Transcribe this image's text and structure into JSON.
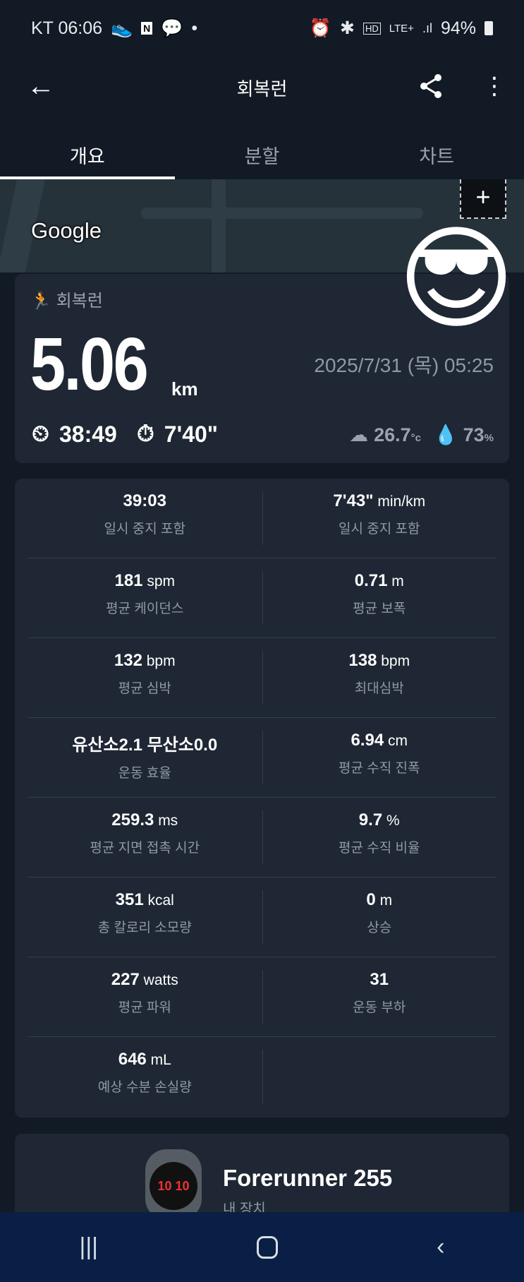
{
  "status_bar": {
    "carrier_time": "KT 06:06",
    "battery": "94%",
    "icons": [
      "shoe-icon",
      "naver-icon",
      "kakaotalk-icon",
      "dot-icon",
      "alarm-icon",
      "bluetooth-icon",
      "hd-icon",
      "lte-icon",
      "signal-icon",
      "battery-icon"
    ]
  },
  "app_bar": {
    "title": "회복런"
  },
  "tabs": [
    {
      "label": "개요",
      "active": true
    },
    {
      "label": "분할"
    },
    {
      "label": "차트"
    }
  ],
  "map": {
    "logo": "Google"
  },
  "summary": {
    "type": "회복런",
    "distance": "5.06",
    "unit": "km",
    "datetime": "2025/7/31 (목) 05:25",
    "time": "38:49",
    "pace": "7'40\"",
    "temp": "26.7",
    "temp_unit": "°c",
    "humidity": "73",
    "humidity_unit": "%"
  },
  "stats": [
    [
      {
        "v": "39:03",
        "u": "",
        "l": "일시 중지 포함"
      },
      {
        "v": "7'43\"",
        "u": " min/km",
        "l": "일시 중지 포함"
      }
    ],
    [
      {
        "v": "181",
        "u": " spm",
        "l": "평균 케이던스"
      },
      {
        "v": "0.71",
        "u": " m",
        "l": "평균 보폭"
      }
    ],
    [
      {
        "v": "132",
        "u": " bpm",
        "l": "평균 심박"
      },
      {
        "v": "138",
        "u": " bpm",
        "l": "최대심박"
      }
    ],
    [
      {
        "v": "유산소2.1 무산소0.0",
        "u": "",
        "l": "운동 효율"
      },
      {
        "v": "6.94",
        "u": " cm",
        "l": "평균 수직 진폭"
      }
    ],
    [
      {
        "v": "259.3",
        "u": " ms",
        "l": "평균 지면 접촉 시간"
      },
      {
        "v": "9.7",
        "u": " %",
        "l": "평균 수직 비율"
      }
    ],
    [
      {
        "v": "351",
        "u": " kcal",
        "l": "총 칼로리 소모량"
      },
      {
        "v": "0",
        "u": " m",
        "l": "상승"
      }
    ],
    [
      {
        "v": "227",
        "u": " watts",
        "l": "평균 파워"
      },
      {
        "v": "31",
        "u": "",
        "l": "운동 부하"
      }
    ],
    [
      {
        "v": "646",
        "u": " mL",
        "l": "예상 수분 손실량"
      },
      {
        "v": "",
        "u": "",
        "l": ""
      }
    ]
  ],
  "device": {
    "name": "Forerunner 255",
    "sub": "내 장치",
    "watch_time": "10 10"
  }
}
